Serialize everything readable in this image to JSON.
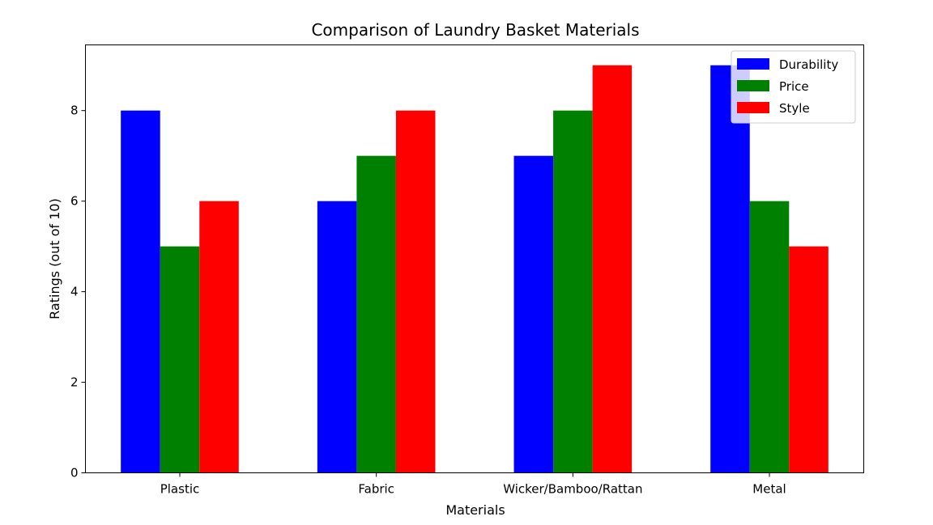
{
  "chart_data": {
    "type": "bar",
    "title": "Comparison of Laundry Basket Materials",
    "xlabel": "Materials",
    "ylabel": "Ratings (out of 10)",
    "categories": [
      "Plastic",
      "Fabric",
      "Wicker/Bamboo/Rattan",
      "Metal"
    ],
    "series": [
      {
        "name": "Durability",
        "color": "#0000ff",
        "values": [
          8,
          6,
          7,
          9
        ]
      },
      {
        "name": "Price",
        "color": "#008000",
        "values": [
          5,
          7,
          8,
          6
        ]
      },
      {
        "name": "Style",
        "color": "#ff0000",
        "values": [
          6,
          8,
          9,
          5
        ]
      }
    ],
    "ylim": [
      0,
      9.45
    ],
    "yticks": [
      0,
      2,
      4,
      6,
      8
    ],
    "grid": false,
    "legend": "top-right"
  }
}
